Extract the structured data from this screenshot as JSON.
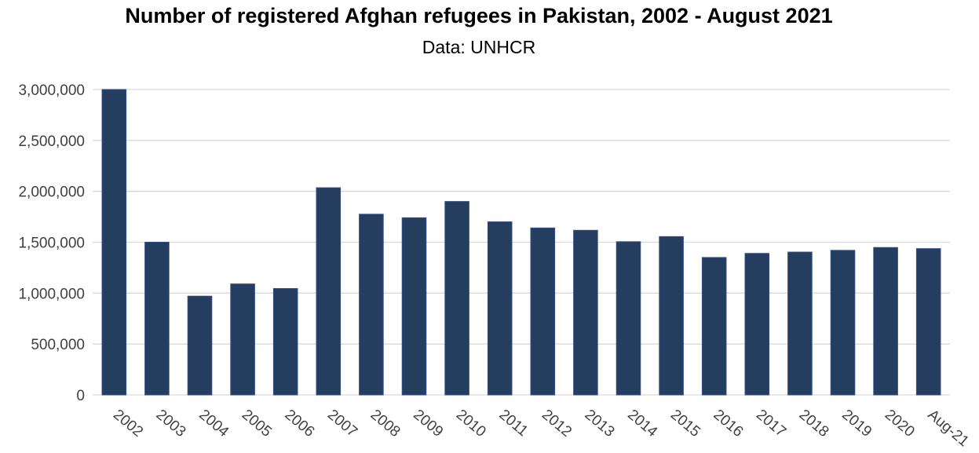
{
  "chart_data": {
    "type": "bar",
    "title": "Number of registered Afghan refugees in Pakistan, 2002 - August 2021",
    "subtitle": "Data: UNHCR",
    "xlabel": "",
    "ylabel": "",
    "categories": [
      "2002",
      "2003",
      "2004",
      "2005",
      "2006",
      "2007",
      "2008",
      "2009",
      "2010",
      "2011",
      "2012",
      "2013",
      "2014",
      "2015",
      "2016",
      "2017",
      "2018",
      "2019",
      "2020",
      "Aug-21"
    ],
    "values": [
      3000000,
      1500000,
      970000,
      1090000,
      1045000,
      2035000,
      1775000,
      1740000,
      1900000,
      1700000,
      1640000,
      1617000,
      1505000,
      1555000,
      1350000,
      1390000,
      1403000,
      1420000,
      1448000,
      1437000
    ],
    "ylim": [
      0,
      3000000
    ],
    "yticks": [
      0,
      500000,
      1000000,
      1500000,
      2000000,
      2500000,
      3000000
    ],
    "ytick_labels": [
      "0",
      "500,000",
      "1,000,000",
      "1,500,000",
      "2,000,000",
      "2,500,000",
      "3,000,000"
    ],
    "grid": true,
    "legend": "none",
    "bar_color": "#253d5f"
  }
}
